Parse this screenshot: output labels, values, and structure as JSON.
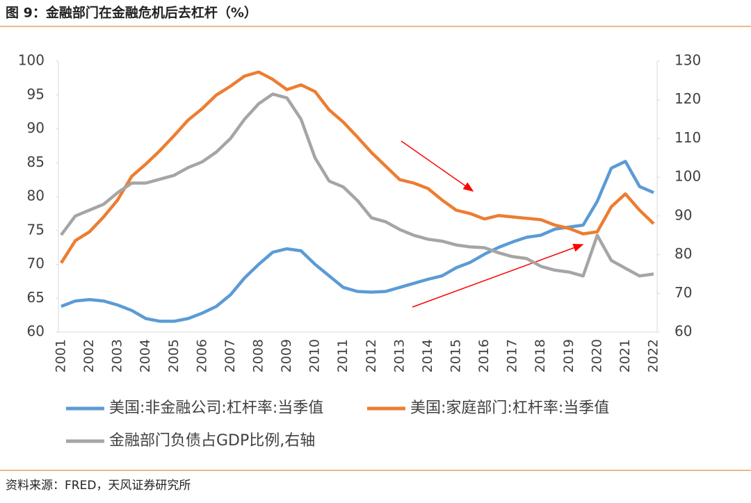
{
  "title": "图 9：金融部门在金融危机后去杠杆（%）",
  "source": "资料来源：FRED，天风证券研究所",
  "chart_data": {
    "type": "line",
    "categories": [
      "2001",
      null,
      "2002",
      null,
      "2003",
      null,
      "2004",
      null,
      "2005",
      null,
      "2006",
      null,
      "2007",
      null,
      "2008",
      null,
      "2009",
      null,
      "2010",
      null,
      "2011",
      null,
      "2012",
      null,
      "2013",
      null,
      "2014",
      null,
      "2015",
      null,
      "2016",
      null,
      "2017",
      null,
      "2018",
      null,
      "2019",
      null,
      "2020",
      null,
      "2021",
      null,
      "2022"
    ],
    "series": [
      {
        "name": "美国:非金融公司:杠杆率:当季值",
        "color": "#5b9bd5",
        "values": [
          63.8,
          64.6,
          64.8,
          64.6,
          64.0,
          63.2,
          62.0,
          61.6,
          61.6,
          62.0,
          62.8,
          63.8,
          65.5,
          68.0,
          70.0,
          71.8,
          72.3,
          72.0,
          70.0,
          68.3,
          66.6,
          66.0,
          65.9,
          66.0,
          66.6,
          67.2,
          67.8,
          68.3,
          69.5,
          70.3,
          71.5,
          72.5,
          73.3,
          74.0,
          74.3,
          75.2,
          75.5,
          75.8,
          79.3,
          84.2,
          85.2,
          81.5,
          80.6
        ]
      },
      {
        "name": "美国:家庭部门:杠杆率:当季值",
        "color": "#ed7d31",
        "values": [
          70.2,
          73.5,
          74.8,
          77.0,
          79.5,
          83.0,
          84.8,
          86.8,
          89.0,
          91.3,
          93.0,
          95.0,
          96.3,
          97.8,
          98.4,
          97.3,
          95.8,
          96.5,
          95.5,
          92.8,
          91.0,
          88.8,
          86.5,
          84.5,
          82.5,
          82.0,
          81.2,
          79.5,
          78.0,
          77.5,
          76.7,
          77.2,
          77.0,
          76.8,
          76.6,
          75.8,
          75.3,
          74.5,
          74.8,
          78.5,
          80.4,
          78.0,
          76.0
        ]
      },
      {
        "name": "金融部门负债占GDP比例,右轴",
        "color": "#a5a5a5",
        "axis": "y2",
        "values": [
          85.1,
          90.0,
          91.5,
          93.0,
          96.0,
          98.5,
          98.5,
          99.5,
          100.5,
          102.5,
          104.0,
          106.5,
          110.0,
          115.0,
          119.0,
          121.5,
          120.5,
          115.0,
          105.0,
          99.0,
          97.5,
          94.0,
          89.5,
          88.5,
          86.5,
          85.0,
          84.0,
          83.5,
          82.5,
          82.0,
          81.8,
          80.5,
          79.5,
          79.0,
          77.0,
          76.0,
          75.5,
          74.5,
          85.0,
          78.5,
          76.5,
          74.5,
          75.0
        ]
      }
    ],
    "ylim": [
      60,
      100
    ],
    "yticks": [
      60,
      65,
      70,
      75,
      80,
      85,
      90,
      95,
      100
    ],
    "y2lim": [
      60,
      130
    ],
    "y2ticks": [
      60,
      70,
      80,
      90,
      100,
      110,
      120,
      130
    ]
  }
}
